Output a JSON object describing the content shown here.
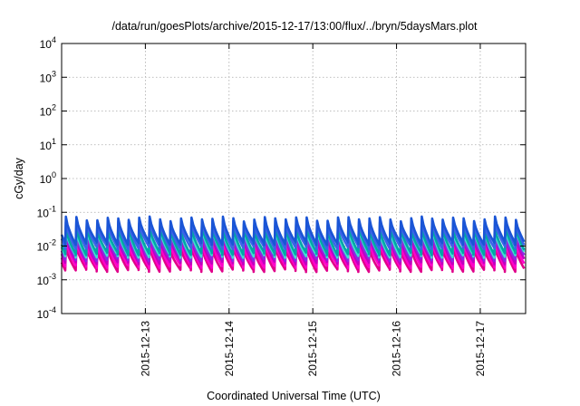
{
  "chart_data": {
    "type": "line",
    "title": "/data/run/goesPlots/archive/2015-12-17/13:00/flux/../bryn/5daysMars.plot",
    "xlabel": "Coordinated Universal Time (UTC)",
    "ylabel": "cGy/day",
    "y_scale": "log",
    "ylim": [
      0.0001,
      10000
    ],
    "y_ticks": [
      {
        "base": "10",
        "exp": "4",
        "value": 10000
      },
      {
        "base": "10",
        "exp": "3",
        "value": 1000
      },
      {
        "base": "10",
        "exp": "2",
        "value": 100
      },
      {
        "base": "10",
        "exp": "1",
        "value": 10
      },
      {
        "base": "10",
        "exp": "0",
        "value": 1
      },
      {
        "base": "10",
        "exp": "-1",
        "value": 0.1
      },
      {
        "base": "10",
        "exp": "-2",
        "value": 0.01
      },
      {
        "base": "10",
        "exp": "-3",
        "value": 0.001
      },
      {
        "base": "10",
        "exp": "-4",
        "value": 0.0001
      }
    ],
    "xlim": [
      "2015-12-12T00:00",
      "2015-12-17T13:00"
    ],
    "x_ticks": [
      {
        "label": "2015-12-13",
        "date": "2015-12-13T00:00"
      },
      {
        "label": "2015-12-14",
        "date": "2015-12-14T00:00"
      },
      {
        "label": "2015-12-15",
        "date": "2015-12-15T00:00"
      },
      {
        "label": "2015-12-16",
        "date": "2015-12-16T00:00"
      },
      {
        "label": "2015-12-17",
        "date": "2015-12-17T00:00"
      }
    ],
    "grid": true,
    "sawtooth_period_hours": 3,
    "series": [
      {
        "color": "#1a55d6",
        "peak": 0.065,
        "trough": 0.012
      },
      {
        "color": "#3b63e8",
        "peak": 0.05,
        "trough": 0.009
      },
      {
        "color": "#00a6a6",
        "peak": 0.035,
        "trough": 0.006
      },
      {
        "color": "#40e0d0",
        "peak": 0.03,
        "trough": 0.005
      },
      {
        "color": "#8b2be2",
        "peak": 0.022,
        "trough": 0.004
      },
      {
        "color": "#c000c0",
        "peak": 0.018,
        "trough": 0.0032
      },
      {
        "color": "#ff00cc",
        "peak": 0.013,
        "trough": 0.0025
      },
      {
        "color": "#e0008a",
        "peak": 0.009,
        "trough": 0.0019
      }
    ]
  }
}
